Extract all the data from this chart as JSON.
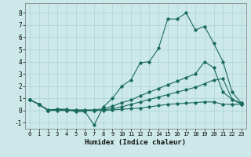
{
  "xlabel": "Humidex (Indice chaleur)",
  "xlim": [
    -0.5,
    23.5
  ],
  "ylim": [
    -1.5,
    8.8
  ],
  "yticks": [
    -1,
    0,
    1,
    2,
    3,
    4,
    5,
    6,
    7,
    8
  ],
  "xticks": [
    0,
    1,
    2,
    3,
    4,
    5,
    6,
    7,
    8,
    9,
    10,
    11,
    12,
    13,
    14,
    15,
    16,
    17,
    18,
    19,
    20,
    21,
    22,
    23
  ],
  "bg_color": "#cce8e8",
  "grid_color": "#aad4d4",
  "line_color": "#1a6b5e",
  "lines": [
    {
      "x": [
        0,
        1,
        2,
        3,
        4,
        5,
        6,
        7,
        8,
        9,
        10,
        11,
        12,
        13,
        14,
        15,
        16,
        17,
        18,
        19,
        20,
        21,
        22,
        23
      ],
      "y": [
        0.9,
        0.5,
        0.0,
        0.1,
        0.1,
        -0.1,
        -0.1,
        -1.2,
        0.3,
        1.0,
        2.0,
        2.5,
        3.9,
        4.0,
        5.1,
        7.5,
        7.5,
        8.0,
        6.6,
        6.9,
        5.5,
        4.0,
        1.5,
        0.6
      ]
    },
    {
      "x": [
        0,
        1,
        2,
        3,
        4,
        5,
        6,
        7,
        8,
        9,
        10,
        11,
        12,
        13,
        14,
        15,
        16,
        17,
        18,
        19,
        20,
        21,
        22,
        23
      ],
      "y": [
        0.9,
        0.5,
        0.05,
        0.1,
        0.05,
        0.05,
        0.05,
        0.05,
        0.15,
        0.35,
        0.65,
        0.85,
        1.2,
        1.5,
        1.8,
        2.1,
        2.4,
        2.7,
        3.0,
        4.0,
        3.5,
        1.5,
        0.9,
        0.6
      ]
    },
    {
      "x": [
        0,
        1,
        2,
        3,
        4,
        5,
        6,
        7,
        8,
        9,
        10,
        11,
        12,
        13,
        14,
        15,
        16,
        17,
        18,
        19,
        20,
        21,
        22,
        23
      ],
      "y": [
        0.9,
        0.5,
        0.0,
        0.05,
        0.0,
        0.0,
        0.0,
        0.0,
        0.05,
        0.15,
        0.3,
        0.5,
        0.7,
        0.9,
        1.1,
        1.3,
        1.5,
        1.7,
        1.9,
        2.2,
        2.5,
        2.6,
        0.9,
        0.5
      ]
    },
    {
      "x": [
        0,
        1,
        2,
        3,
        4,
        5,
        6,
        7,
        8,
        9,
        10,
        11,
        12,
        13,
        14,
        15,
        16,
        17,
        18,
        19,
        20,
        21,
        22,
        23
      ],
      "y": [
        0.9,
        0.5,
        0.0,
        0.0,
        0.0,
        0.0,
        0.0,
        0.0,
        0.0,
        0.05,
        0.1,
        0.15,
        0.2,
        0.3,
        0.4,
        0.5,
        0.55,
        0.6,
        0.65,
        0.7,
        0.7,
        0.5,
        0.5,
        0.5
      ]
    }
  ]
}
